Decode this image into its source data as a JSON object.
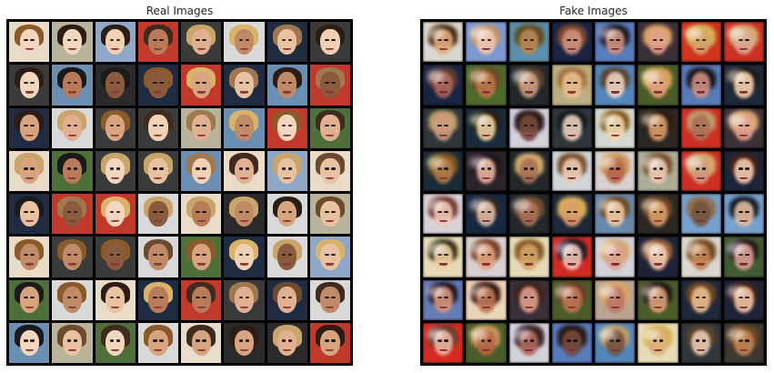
{
  "panels": [
    {
      "title": "Real Images",
      "kind": "real"
    },
    {
      "title": "Fake Images",
      "kind": "fake"
    }
  ],
  "colors": {
    "background": "#ffffff",
    "grid_border": "#000000",
    "skin_tones": [
      "#e9c2a2",
      "#d8a47f",
      "#c18a66",
      "#f1d0b3",
      "#8a5a3c",
      "#e0b090",
      "#b97b57",
      "#f3d6be"
    ],
    "hair_tones": [
      "#2b1d15",
      "#6b4a2e",
      "#d9b36a",
      "#1a1a1a",
      "#8b5a2b",
      "#c9a56b",
      "#3e2a1e",
      "#a07850"
    ],
    "bg_tones": [
      "#d9d9d9",
      "#3a3a3a",
      "#8fa8c8",
      "#c0392b",
      "#4f6f3a",
      "#b9b39c",
      "#1e2b40",
      "#e8dcc8",
      "#6b8fb3",
      "#2a2a2a"
    ],
    "fake_tints": [
      "#7a3e6b",
      "#3b5e7a",
      "#5a7a3b",
      "#8a6a3b",
      "#4b3b7a",
      "#7a3b3b"
    ]
  }
}
